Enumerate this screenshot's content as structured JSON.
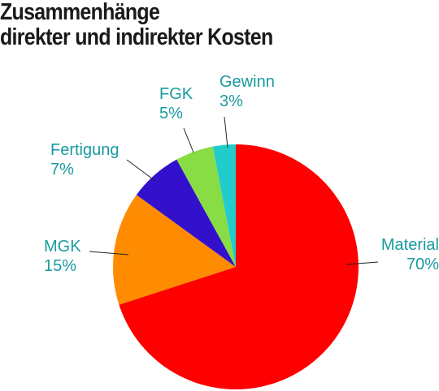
{
  "title_lines": [
    "Zusammenhänge",
    "direkter und indirekter Kosten"
  ],
  "chart_data": {
    "type": "pie",
    "title": "Zusammenhänge direkter und indirekter Kosten",
    "slices": [
      {
        "label": "Material",
        "value": 70,
        "value_text": "70%",
        "color": "#ff0000"
      },
      {
        "label": "MGK",
        "value": 15,
        "value_text": "15%",
        "color": "#ff8c00"
      },
      {
        "label": "Fertigung",
        "value": 7,
        "value_text": "7%",
        "color": "#3311cc"
      },
      {
        "label": "FGK",
        "value": 5,
        "value_text": "5%",
        "color": "#88dd44"
      },
      {
        "label": "Gewinn",
        "value": 3,
        "value_text": "3%",
        "color": "#22cccc"
      }
    ],
    "label_color": "#1a9aa0",
    "start_angle": "12 o'clock",
    "direction": "clockwise"
  }
}
